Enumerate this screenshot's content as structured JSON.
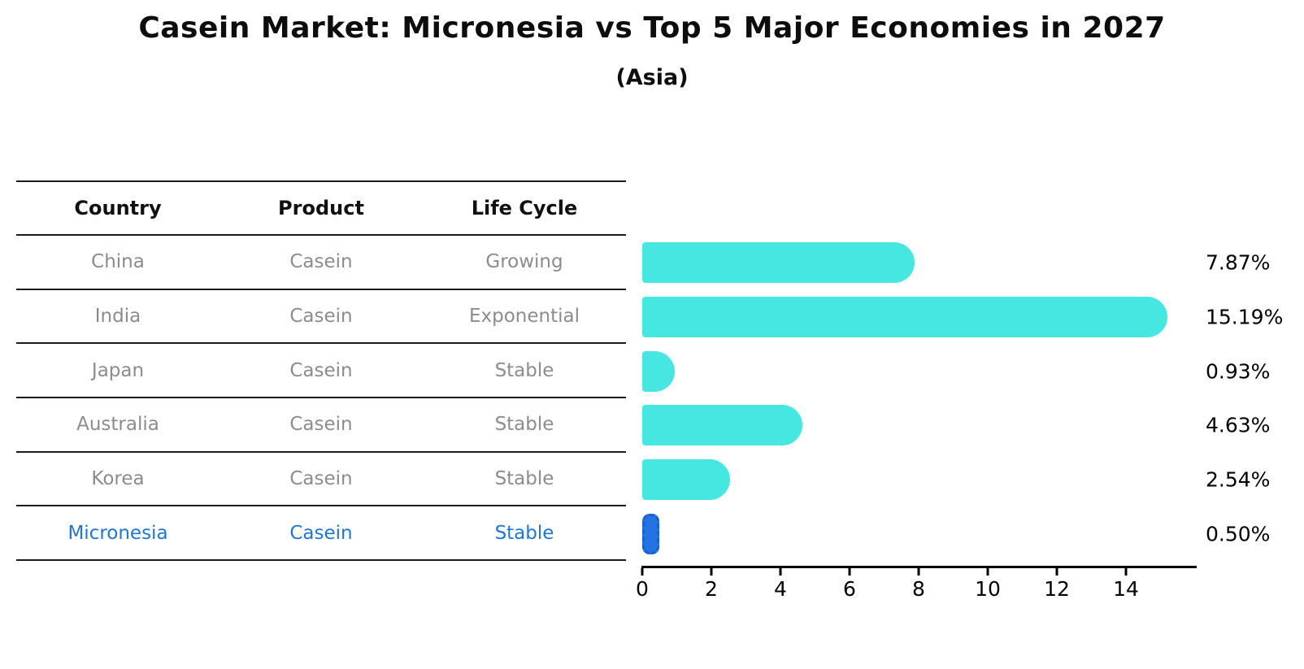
{
  "header": {
    "title": "Casein Market: Micronesia vs Top 5 Major Economies in 2027",
    "subtitle": "(Asia)"
  },
  "colors": {
    "bar": "#46e6e1",
    "highlight_bar_fill": "#2473e3",
    "highlight_bar_border": "#1b60cf",
    "highlight_text": "#1f77d4",
    "table_text": "#8c8c8c",
    "header_text": "#111111",
    "axis": "#000000"
  },
  "table": {
    "headers": [
      "Country",
      "Product",
      "Life Cycle"
    ],
    "rows": [
      {
        "country": "China",
        "product": "Casein",
        "life_cycle": "Growing",
        "highlight": false
      },
      {
        "country": "India",
        "product": "Casein",
        "life_cycle": "Exponential",
        "highlight": false
      },
      {
        "country": "Japan",
        "product": "Casein",
        "life_cycle": "Stable",
        "highlight": false
      },
      {
        "country": "Australia",
        "product": "Casein",
        "life_cycle": "Stable",
        "highlight": false
      },
      {
        "country": "Korea",
        "product": "Casein",
        "life_cycle": "Stable",
        "highlight": true
      },
      {
        "country": "Micronesia",
        "product": "Casein",
        "life_cycle": "Stable",
        "highlight": true
      }
    ]
  },
  "chart_data": {
    "type": "bar",
    "orientation": "horizontal",
    "title": "Casein Market: Micronesia vs Top 5 Major Economies in 2027 (Asia)",
    "categories": [
      "China",
      "India",
      "Japan",
      "Australia",
      "Korea",
      "Micronesia"
    ],
    "values": [
      7.87,
      15.19,
      0.93,
      4.63,
      2.54,
      0.5
    ],
    "value_labels": [
      "7.87%",
      "15.19%",
      "0.93%",
      "4.63%",
      "2.54%",
      "0.50%"
    ],
    "highlight_index": 5,
    "xlabel": "",
    "ylabel": "",
    "xlim": [
      0,
      16
    ],
    "xticks": [
      0,
      2,
      4,
      6,
      8,
      10,
      12,
      14
    ],
    "grid": false,
    "legend": false
  }
}
